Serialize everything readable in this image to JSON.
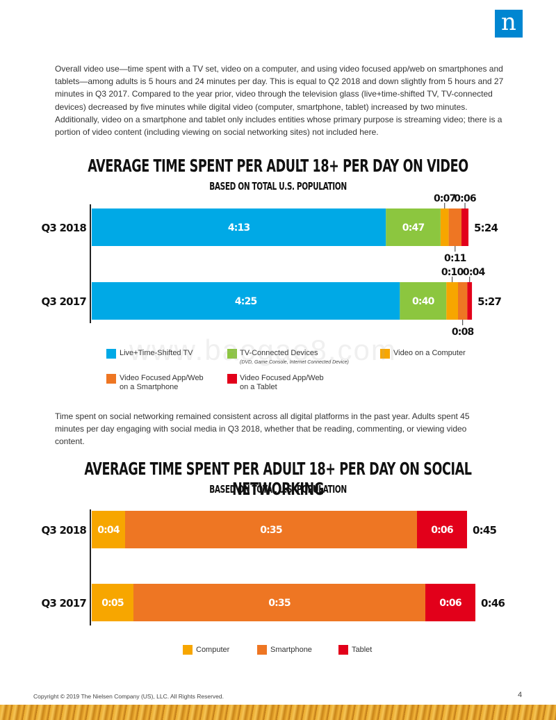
{
  "header": {
    "logo_text": "n"
  },
  "intro_paragraph": "Overall video use—time spent with a TV set, video on a computer, and using video focused app/web on smartphones and tablets—among adults is 5 hours and 24 minutes per day. This is equal to Q2 2018 and down slightly from 5 hours and 27 minutes in Q3 2017. Compared to the year prior, video through the television glass (live+time-shifted TV, TV-connected devices) decreased by five minutes while digital video (computer, smartphone, tablet) increased by two minutes. Additionally, video on a smartphone and tablet only includes entities whose primary purpose is streaming video; there is a portion of video content (including viewing on social networking sites) not included here.",
  "social_paragraph": "Time spent on social networking remained consistent across all digital platforms in the past year. Adults spent 45 minutes per day engaging with social media in Q3 2018, whether that be reading, commenting, or viewing video content.",
  "watermark": "www.baogao8.com",
  "footer": {
    "copyright": "Copyright © 2019 The Nielsen Company (US), LLC. All Rights Reserved.",
    "page_number": "4"
  },
  "chart_data": [
    {
      "type": "bar",
      "orientation": "horizontal-stacked",
      "title": "AVERAGE TIME SPENT PER ADULT 18+ PER DAY ON VIDEO",
      "subtitle": "BASED ON TOTAL U.S. POPULATION",
      "categories": [
        "Q3 2018",
        "Q3 2017"
      ],
      "totals": [
        "5:24",
        "5:27"
      ],
      "series": [
        {
          "name": "Live+Time-Shifted TV",
          "color": "#00a9e6",
          "labels": [
            "4:13",
            "4:25"
          ]
        },
        {
          "name": "TV-Connected Devices",
          "note": "(DVD, Game Console, Internet Connected Device)",
          "color": "#8cc63f",
          "labels": [
            "0:47",
            "0:40"
          ]
        },
        {
          "name": "Video on a Computer",
          "color": "#f7a600",
          "labels": [
            "0:07",
            "0:10"
          ]
        },
        {
          "name": "Video Focused App/Web on a Smartphone",
          "legend_lines": [
            "Video Focused App/Web",
            "on a Smartphone"
          ],
          "color": "#ee7623",
          "labels": [
            "0:11",
            "0:08"
          ]
        },
        {
          "name": "Video Focused App/Web on a Tablet",
          "legend_lines": [
            "Video Focused App/Web",
            "on a Tablet"
          ],
          "color": "#e2001a",
          "labels": [
            "0:06",
            "0:04"
          ]
        }
      ]
    },
    {
      "type": "bar",
      "orientation": "horizontal-stacked",
      "title": "AVERAGE TIME SPENT PER ADULT 18+ PER DAY ON SOCIAL NETWORKING",
      "subtitle": "BASED ON TOTAL U.S. POPULATION",
      "categories": [
        "Q3 2018",
        "Q3 2017"
      ],
      "totals": [
        "0:45",
        "0:46"
      ],
      "series": [
        {
          "name": "Computer",
          "color": "#f7a600",
          "labels": [
            "0:04",
            "0:05"
          ]
        },
        {
          "name": "Smartphone",
          "color": "#ee7623",
          "labels": [
            "0:35",
            "0:35"
          ]
        },
        {
          "name": "Tablet",
          "color": "#e2001a",
          "labels": [
            "0:06",
            "0:06"
          ]
        }
      ]
    }
  ]
}
